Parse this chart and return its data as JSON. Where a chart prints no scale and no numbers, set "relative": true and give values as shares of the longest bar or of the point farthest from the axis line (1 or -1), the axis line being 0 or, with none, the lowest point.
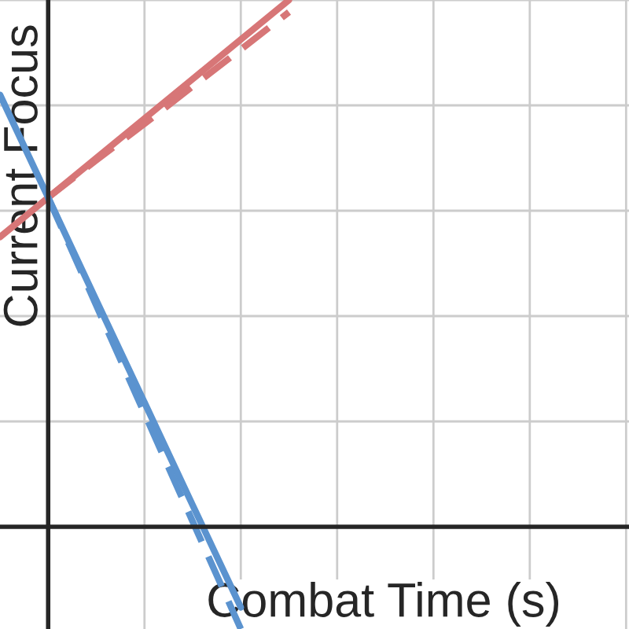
{
  "chart_data": {
    "type": "line",
    "relative": true,
    "xlabel": "Combat Time (s)",
    "ylabel": "Current Focus",
    "grid": true,
    "categories": [
      null,
      null,
      null,
      null,
      null,
      null,
      null,
      null,
      null,
      null,
      null,
      null,
      null,
      null
    ],
    "series": [
      {
        "color": "#d77677",
        "line_style": "solid",
        "values": [
          0.55,
          0.625,
          0.7,
          0.775,
          0.85,
          0.925,
          1.0,
          null,
          null,
          null,
          null,
          null,
          null,
          null
        ]
      },
      {
        "color": "#d77677",
        "line_style": "dashed",
        "values": [
          null,
          0.625,
          0.696,
          0.765,
          0.836,
          0.906,
          0.977,
          null,
          null,
          null,
          null,
          null,
          null,
          null
        ]
      },
      {
        "color": "#5b93cf",
        "line_style": "solid",
        "values": [
          0.82,
          0.625,
          0.43,
          0.236,
          0.041,
          -0.153,
          null,
          null,
          null,
          null,
          null,
          null,
          null,
          null
        ]
      },
      {
        "color": "#5b93cf",
        "line_style": "dashed",
        "values": [
          null,
          0.625,
          0.42,
          0.215,
          0.01,
          -0.194,
          null,
          null,
          null,
          null,
          null,
          null,
          null,
          null
        ]
      }
    ]
  }
}
